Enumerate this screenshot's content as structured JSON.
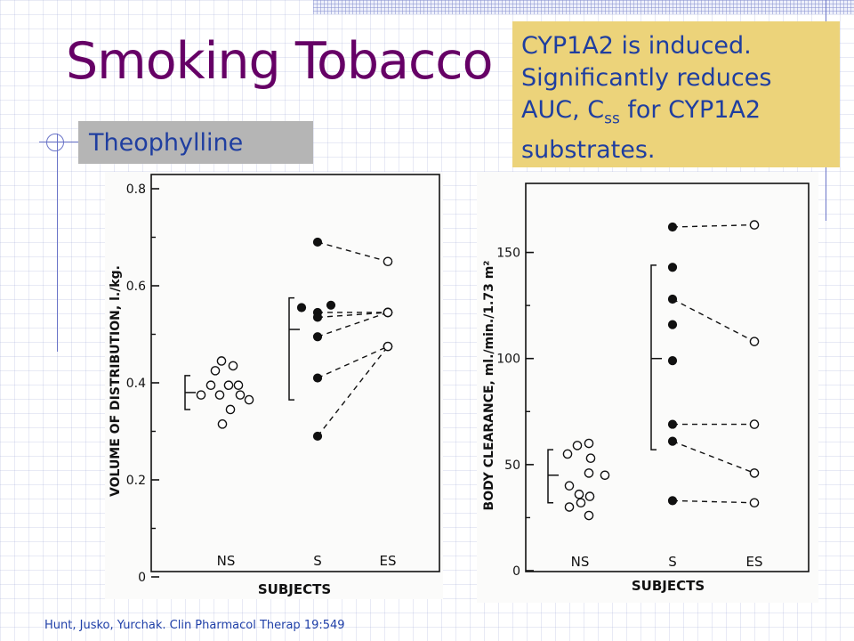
{
  "slide": {
    "title": "Smoking Tobacco",
    "subtitle": "Theophylline",
    "note": {
      "line1": "CYP1A2 is induced.",
      "line2": "Significantly reduces",
      "line3_before": "AUC, C",
      "line3_sub": "ss",
      "line3_after": " for CYP1A2",
      "line4": "substrates."
    },
    "citation": "Hunt, Jusko, Yurchak.  Clin Pharmacol Therap 19:549",
    "colors": {
      "title": "#660066",
      "text": "#1f3ea0",
      "note_bg": "#ecd37a",
      "subtitle_bg": "#b5b5b5"
    }
  },
  "chart_data": [
    {
      "type": "scatter",
      "xlabel": "SUBJECTS",
      "ylabel": "VOLUME OF DISTRIBUTION,  l./kg.",
      "ylim": [
        0,
        0.8
      ],
      "yticks": [
        0,
        0.2,
        0.4,
        0.6,
        0.8
      ],
      "ytick_labels": [
        "0",
        "0.2",
        "0.4",
        "0.6",
        "0.8"
      ],
      "categories": [
        "NS",
        "S",
        "ES"
      ],
      "ns_points": [
        {
          "x": -0.28,
          "y": 0.375
        },
        {
          "x": -0.17,
          "y": 0.395
        },
        {
          "x": -0.12,
          "y": 0.425
        },
        {
          "x": -0.05,
          "y": 0.445
        },
        {
          "x": 0.08,
          "y": 0.435
        },
        {
          "x": -0.07,
          "y": 0.375
        },
        {
          "x": 0.03,
          "y": 0.395
        },
        {
          "x": 0.14,
          "y": 0.395
        },
        {
          "x": 0.26,
          "y": 0.365
        },
        {
          "x": 0.05,
          "y": 0.345
        },
        {
          "x": -0.04,
          "y": 0.315
        },
        {
          "x": 0.16,
          "y": 0.375
        }
      ],
      "ns_bracket": [
        0.345,
        0.415
      ],
      "ns_mean": 0.38,
      "s_only_points": [
        {
          "x": -0.18,
          "y": 0.555
        },
        {
          "x": 0.15,
          "y": 0.56
        }
      ],
      "s_bracket": [
        0.365,
        0.575
      ],
      "s_mean": 0.51,
      "paired": [
        {
          "s": 0.69,
          "es": 0.65
        },
        {
          "s": 0.545,
          "es": 0.545
        },
        {
          "s": 0.535,
          "es": 0.545
        },
        {
          "s": 0.495,
          "es": 0.545
        },
        {
          "s": 0.41,
          "es": 0.475
        },
        {
          "s": 0.29,
          "es": 0.475
        }
      ]
    },
    {
      "type": "scatter",
      "xlabel": "SUBJECTS",
      "ylabel": "BODY CLEARANCE,   ml./min./1.73 m²",
      "ylim": [
        0,
        175
      ],
      "yticks": [
        0,
        50,
        100,
        150
      ],
      "ytick_labels": [
        "0",
        "50",
        "100",
        "150"
      ],
      "categories": [
        "NS",
        "S",
        "ES"
      ],
      "ns_points": [
        {
          "x": -0.14,
          "y": 55
        },
        {
          "x": -0.03,
          "y": 59
        },
        {
          "x": 0.1,
          "y": 60
        },
        {
          "x": 0.12,
          "y": 53
        },
        {
          "x": 0.1,
          "y": 46
        },
        {
          "x": 0.28,
          "y": 45
        },
        {
          "x": -0.12,
          "y": 40
        },
        {
          "x": -0.01,
          "y": 36
        },
        {
          "x": 0.11,
          "y": 35
        },
        {
          "x": -0.12,
          "y": 30
        },
        {
          "x": 0.01,
          "y": 32
        },
        {
          "x": 0.1,
          "y": 26
        }
      ],
      "ns_bracket": [
        32,
        57
      ],
      "ns_mean": 45,
      "s_only_points": [
        {
          "x": 0,
          "y": 143
        },
        {
          "x": 0,
          "y": 116
        },
        {
          "x": 0,
          "y": 99
        }
      ],
      "s_bracket": [
        57,
        144
      ],
      "s_mean": 100,
      "paired": [
        {
          "s": 162,
          "es": 163
        },
        {
          "s": 128,
          "es": 108
        },
        {
          "s": 69,
          "es": 69
        },
        {
          "s": 61,
          "es": 46
        },
        {
          "s": 33,
          "es": 32
        }
      ]
    }
  ]
}
